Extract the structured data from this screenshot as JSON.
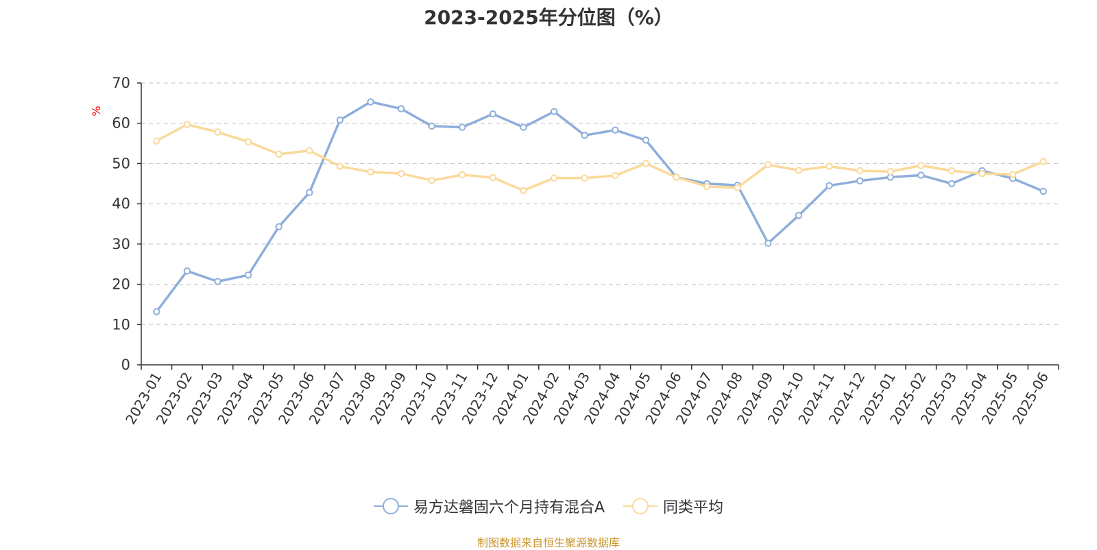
{
  "title": "2023-2025年分位图（%）",
  "footer": "制图数据来自恒生聚源数据库",
  "chart_data": {
    "type": "line",
    "title": "2023-2025年分位图（%）",
    "ylabel": "%",
    "xlabel": "",
    "ylim": [
      0,
      70
    ],
    "yticks": [
      0,
      10,
      20,
      30,
      40,
      50,
      60,
      70
    ],
    "grid": "horizontal-dashed",
    "legend_position": "bottom",
    "categories": [
      "2023-01",
      "2023-02",
      "2023-03",
      "2023-04",
      "2023-05",
      "2023-06",
      "2023-07",
      "2023-08",
      "2023-09",
      "2023-10",
      "2023-11",
      "2023-12",
      "2024-01",
      "2024-02",
      "2024-03",
      "2024-04",
      "2024-05",
      "2024-06",
      "2024-07",
      "2024-08",
      "2024-09",
      "2024-10",
      "2024-11",
      "2024-12",
      "2025-01",
      "2025-02",
      "2025-03",
      "2025-04",
      "2025-05",
      "2025-06"
    ],
    "series": [
      {
        "name": "易方达磐固六个月持有混合A",
        "color": "#8eaedb",
        "values": [
          13.2,
          23.3,
          20.7,
          22.3,
          34.3,
          42.8,
          60.8,
          65.3,
          63.6,
          59.3,
          59.0,
          62.3,
          59.0,
          62.9,
          57.0,
          58.3,
          55.8,
          46.6,
          45.0,
          44.6,
          30.2,
          37.1,
          44.5,
          45.7,
          46.6,
          47.1,
          45.0,
          48.2,
          46.3,
          43.1
        ]
      },
      {
        "name": "同类平均",
        "color": "#fad99a",
        "values": [
          55.6,
          59.7,
          57.8,
          55.4,
          52.3,
          53.2,
          49.3,
          47.9,
          47.5,
          45.8,
          47.2,
          46.5,
          43.3,
          46.4,
          46.4,
          47.0,
          50.0,
          46.6,
          44.3,
          44.0,
          49.7,
          48.3,
          49.3,
          48.2,
          48.0,
          49.5,
          48.2,
          47.5,
          47.3,
          50.5
        ]
      }
    ]
  }
}
